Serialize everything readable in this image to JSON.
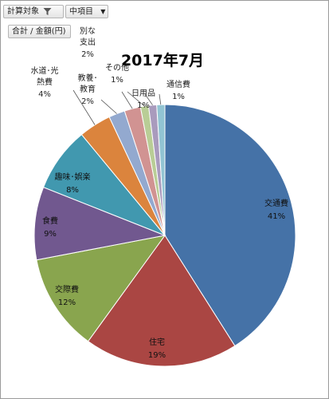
{
  "pivot": {
    "field1": "計算対象",
    "field2": "中項目",
    "value_field": "合計 / 金額(円)"
  },
  "chart_data": {
    "type": "pie",
    "title": "2017年7月",
    "slices": [
      {
        "name": "交通費",
        "value": 41,
        "label": "41%",
        "color": "#4572a7"
      },
      {
        "name": "住宅",
        "value": 19,
        "label": "19%",
        "color": "#aa4643"
      },
      {
        "name": "交際費",
        "value": 12,
        "label": "12%",
        "color": "#89a54e"
      },
      {
        "name": "食費",
        "value": 9,
        "label": "9%",
        "color": "#71588f"
      },
      {
        "name": "趣味･娯楽",
        "value": 8,
        "label": "8%",
        "color": "#4198af"
      },
      {
        "name": "水道･光熱費",
        "value": 4,
        "label": "4%",
        "color": "#db843d"
      },
      {
        "name": "教養･教育",
        "value": 2,
        "label": "2%",
        "color": "#93a9cf"
      },
      {
        "name": "特別な支出",
        "value": 2,
        "label": "2%",
        "color": "#d19392"
      },
      {
        "name": "その他",
        "value": 1,
        "label": "1%",
        "color": "#b9cd96"
      },
      {
        "name": "日用品",
        "value": 1,
        "label": "1%",
        "color": "#a99bbd"
      },
      {
        "name": "通信費",
        "value": 1,
        "label": "1%",
        "color": "#92c4d3"
      }
    ],
    "label_text": {
      "s0": [
        "交通費"
      ],
      "s1": [
        "住宅"
      ],
      "s2": [
        "交際費"
      ],
      "s3": [
        "食費"
      ],
      "s4": [
        "趣味･娯楽"
      ],
      "s5": [
        "水道･光",
        "熱費"
      ],
      "s6": [
        "教養･",
        "教育"
      ],
      "s7": [
        "別な",
        "支出"
      ],
      "s8": [
        "その他"
      ],
      "s9": [
        "日用品"
      ],
      "s10": [
        "通信費"
      ]
    }
  }
}
